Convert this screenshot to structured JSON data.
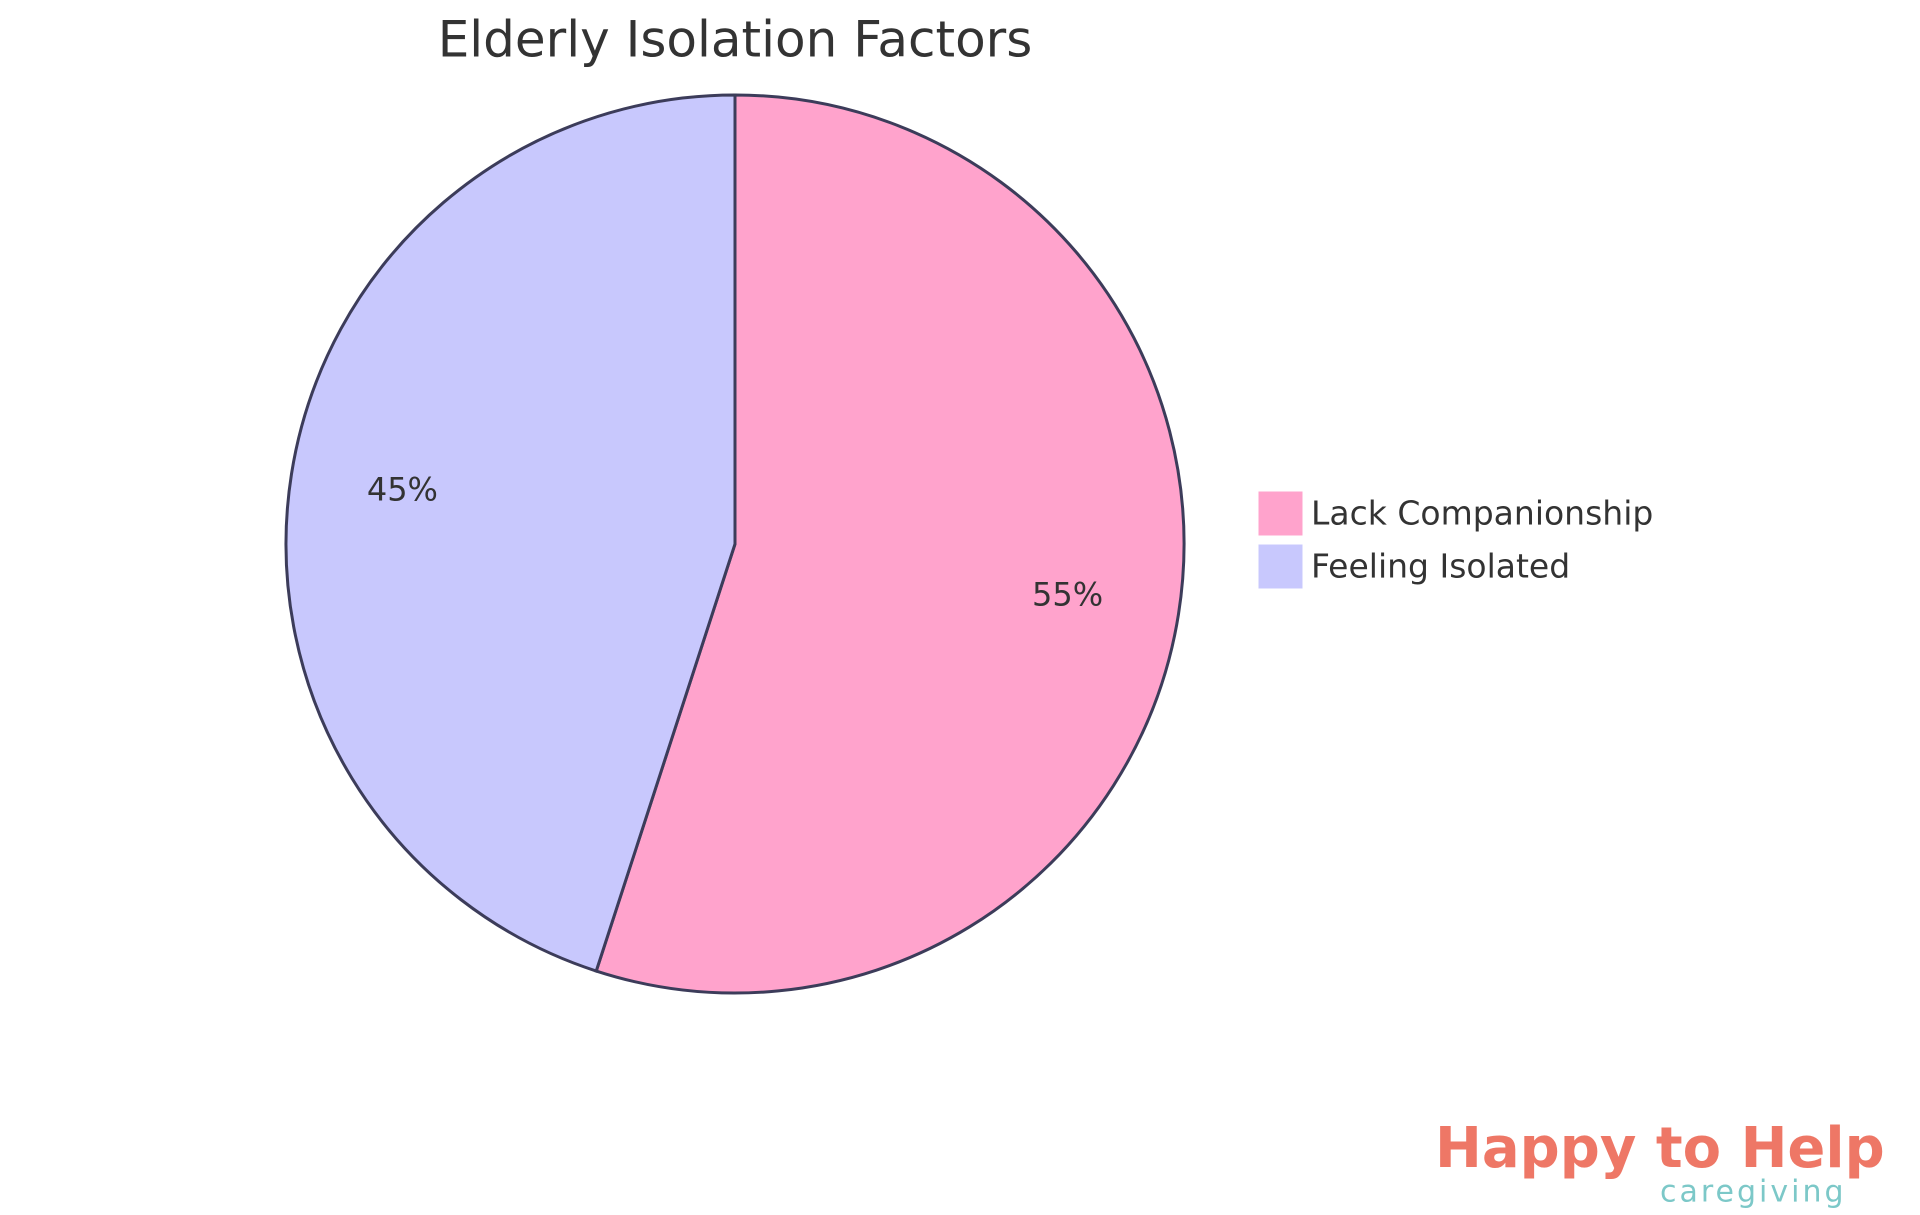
{
  "chart_data": {
    "type": "pie",
    "title": "Elderly Isolation Factors",
    "categories": [
      "Lack Companionship",
      "Feeling Isolated"
    ],
    "values": [
      55,
      45
    ],
    "value_labels": [
      "55%",
      "45%"
    ],
    "colors": [
      "#ffa3cc",
      "#c8c8fd"
    ],
    "legend": "right"
  },
  "logo": {
    "name": "Happy to Help",
    "tagline": "caregiving"
  }
}
